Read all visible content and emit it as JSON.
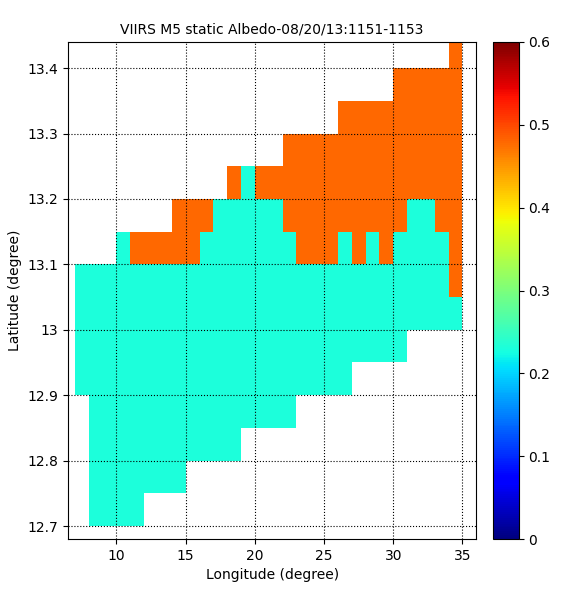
{
  "chart_data": {
    "type": "heatmap",
    "title": "VIIRS M5 static Albedo-08/20/13:1151-1153",
    "x_label": "Longitude (degree)",
    "y_label": "Latitude (degree)",
    "x": [
      7.5,
      8.5,
      9.5,
      10.5,
      11.5,
      12.5,
      13.5,
      14.5,
      15.5,
      16.5,
      17.5,
      18.5,
      19.5,
      20.5,
      21.5,
      22.5,
      23.5,
      24.5,
      25.5,
      26.5,
      27.5,
      28.5,
      29.5,
      30.5,
      31.5,
      32.5,
      33.5,
      34.5
    ],
    "y": [
      12.725,
      12.775,
      12.825,
      12.875,
      12.925,
      12.975,
      13.025,
      13.075,
      13.125,
      13.175,
      13.225,
      13.275,
      13.325,
      13.375,
      13.425
    ],
    "cells": [
      [
        null,
        0.23,
        0.23,
        0.23,
        0.23,
        null,
        null,
        null,
        null,
        null,
        null,
        null,
        null,
        null,
        null,
        null,
        null,
        null,
        null,
        null,
        null,
        null,
        null,
        null,
        null,
        null,
        null,
        null
      ],
      [
        null,
        0.23,
        0.23,
        0.23,
        0.23,
        0.23,
        0.23,
        0.23,
        null,
        null,
        null,
        null,
        null,
        null,
        null,
        null,
        null,
        null,
        null,
        null,
        null,
        null,
        null,
        null,
        null,
        null,
        null,
        null
      ],
      [
        null,
        0.23,
        0.23,
        0.23,
        0.23,
        0.23,
        0.23,
        0.23,
        0.23,
        0.23,
        0.23,
        0.23,
        null,
        null,
        null,
        null,
        null,
        null,
        null,
        null,
        null,
        null,
        null,
        null,
        null,
        null,
        null,
        null
      ],
      [
        null,
        0.23,
        0.23,
        0.23,
        0.23,
        0.23,
        0.23,
        0.23,
        0.23,
        0.23,
        0.23,
        0.23,
        0.23,
        0.23,
        0.23,
        0.23,
        null,
        null,
        null,
        null,
        null,
        null,
        null,
        null,
        null,
        null,
        null,
        null
      ],
      [
        0.23,
        0.23,
        0.23,
        0.23,
        0.23,
        0.23,
        0.23,
        0.23,
        0.23,
        0.23,
        0.23,
        0.23,
        0.23,
        0.23,
        0.23,
        0.23,
        0.23,
        0.23,
        0.23,
        0.23,
        null,
        null,
        null,
        null,
        null,
        null,
        null,
        null
      ],
      [
        0.23,
        0.23,
        0.23,
        0.23,
        0.23,
        0.23,
        0.23,
        0.23,
        0.23,
        0.23,
        0.23,
        0.23,
        0.23,
        0.23,
        0.23,
        0.23,
        0.23,
        0.23,
        0.23,
        0.23,
        0.23,
        0.23,
        0.23,
        0.23,
        null,
        null,
        null,
        null
      ],
      [
        0.23,
        0.23,
        0.23,
        0.23,
        0.23,
        0.23,
        0.23,
        0.23,
        0.23,
        0.23,
        0.23,
        0.23,
        0.23,
        0.23,
        0.23,
        0.23,
        0.23,
        0.23,
        0.23,
        0.23,
        0.23,
        0.23,
        0.23,
        0.23,
        0.23,
        0.23,
        0.23,
        0.23
      ],
      [
        0.23,
        0.23,
        0.23,
        0.23,
        0.23,
        0.23,
        0.23,
        0.23,
        0.23,
        0.23,
        0.23,
        0.23,
        0.23,
        0.23,
        0.23,
        0.23,
        0.23,
        0.23,
        0.23,
        0.23,
        0.23,
        0.23,
        0.23,
        0.23,
        0.23,
        0.23,
        0.23,
        0.48
      ],
      [
        null,
        null,
        null,
        0.23,
        0.48,
        0.48,
        0.48,
        0.48,
        0.48,
        0.23,
        0.23,
        0.23,
        0.23,
        0.23,
        0.23,
        0.23,
        0.48,
        0.48,
        0.48,
        0.23,
        0.48,
        0.23,
        0.48,
        0.23,
        0.23,
        0.23,
        0.23,
        0.48
      ],
      [
        null,
        null,
        null,
        null,
        null,
        null,
        null,
        0.48,
        0.48,
        0.48,
        0.23,
        0.23,
        0.23,
        0.23,
        0.23,
        0.48,
        0.48,
        0.48,
        0.48,
        0.48,
        0.48,
        0.48,
        0.48,
        0.48,
        0.23,
        0.23,
        0.48,
        0.48
      ],
      [
        null,
        null,
        null,
        null,
        null,
        null,
        null,
        null,
        null,
        null,
        null,
        0.48,
        0.23,
        0.48,
        0.48,
        0.48,
        0.48,
        0.48,
        0.48,
        0.48,
        0.48,
        0.48,
        0.48,
        0.48,
        0.48,
        0.48,
        0.48,
        0.48
      ],
      [
        null,
        null,
        null,
        null,
        null,
        null,
        null,
        null,
        null,
        null,
        null,
        null,
        null,
        null,
        null,
        0.48,
        0.48,
        0.48,
        0.48,
        0.48,
        0.48,
        0.48,
        0.48,
        0.48,
        0.48,
        0.48,
        0.48,
        0.48
      ],
      [
        null,
        null,
        null,
        null,
        null,
        null,
        null,
        null,
        null,
        null,
        null,
        null,
        null,
        null,
        null,
        null,
        null,
        null,
        null,
        0.48,
        0.48,
        0.48,
        0.48,
        0.48,
        0.48,
        0.48,
        0.48,
        0.48
      ],
      [
        null,
        null,
        null,
        null,
        null,
        null,
        null,
        null,
        null,
        null,
        null,
        null,
        null,
        null,
        null,
        null,
        null,
        null,
        null,
        null,
        null,
        null,
        null,
        0.48,
        0.48,
        0.48,
        0.48,
        0.48
      ],
      [
        null,
        null,
        null,
        null,
        null,
        null,
        null,
        null,
        null,
        null,
        null,
        null,
        null,
        null,
        null,
        null,
        null,
        null,
        null,
        null,
        null,
        null,
        null,
        null,
        null,
        null,
        null,
        0.48
      ]
    ],
    "color": "jet",
    "xlim": [
      6.5,
      36
    ],
    "ylim": [
      12.68,
      13.44
    ],
    "xticks": [
      10,
      15,
      20,
      25,
      30,
      35
    ],
    "yticks": [
      12.7,
      12.8,
      12.9,
      13,
      13.1,
      13.2,
      13.3,
      13.4
    ],
    "grid": true,
    "colorbar": {
      "range": [
        0,
        0.6
      ],
      "ticks": [
        0,
        0.1,
        0.2,
        0.3,
        0.4,
        0.5,
        0.6
      ]
    }
  }
}
